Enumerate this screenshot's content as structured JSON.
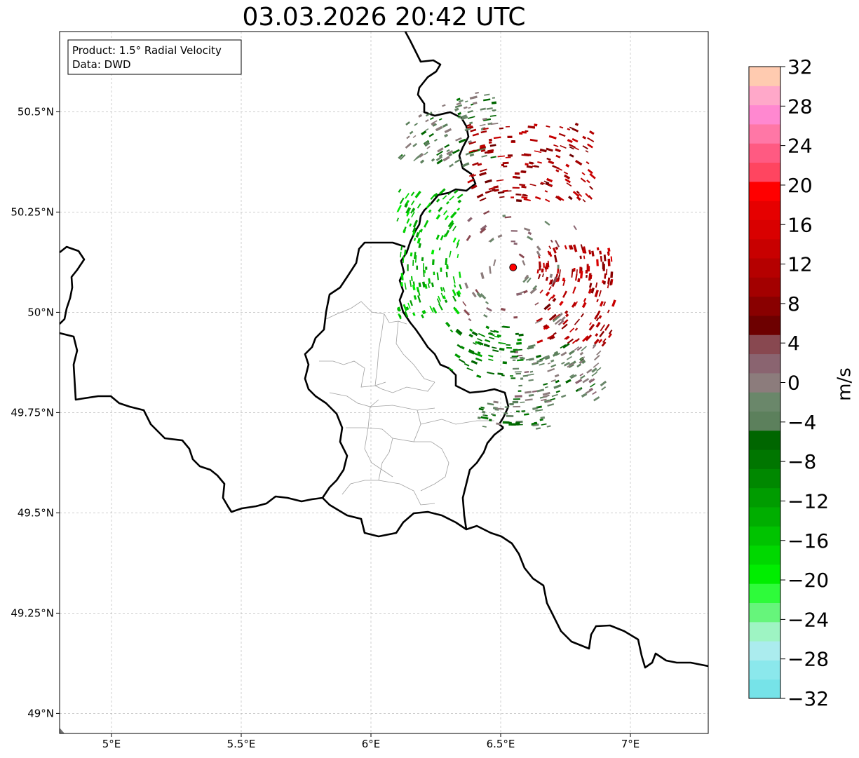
{
  "title": "03.03.2026 20:42 UTC",
  "info_box": {
    "product": "Product: 1.5° Radial Velocity",
    "source": "Data: DWD"
  },
  "map": {
    "lon_range": [
      4.8,
      7.3
    ],
    "lat_range": [
      48.95,
      50.7
    ],
    "x_ticks": [
      {
        "value": 5.0,
        "label": "5°E"
      },
      {
        "value": 5.5,
        "label": "5.5°E"
      },
      {
        "value": 6.0,
        "label": "6°E"
      },
      {
        "value": 6.5,
        "label": "6.5°E"
      },
      {
        "value": 7.0,
        "label": "7°E"
      }
    ],
    "y_ticks": [
      {
        "value": 50.5,
        "label": "50.5°N"
      },
      {
        "value": 50.25,
        "label": "50.25°N"
      },
      {
        "value": 50.0,
        "label": "50°N"
      },
      {
        "value": 49.75,
        "label": "49.75°N"
      },
      {
        "value": 49.5,
        "label": "49.5°N"
      },
      {
        "value": 49.25,
        "label": "49.25°N"
      },
      {
        "value": 49.0,
        "label": "49°N"
      }
    ],
    "radar_site": {
      "lon": 6.548,
      "lat": 50.112
    },
    "colors": {
      "border": "#000000",
      "grid": "#b0b0b0",
      "admin": "#a0a0a0",
      "radar_marker": "#ff0000"
    }
  },
  "colorbar": {
    "label": "m/s",
    "range": [
      -32,
      32
    ],
    "tick_labels": [
      "32",
      "28",
      "24",
      "20",
      "16",
      "12",
      "8",
      "4",
      "0",
      "−4",
      "−8",
      "−12",
      "−16",
      "−20",
      "−24",
      "−28",
      "−32"
    ],
    "colors": [
      "#76e3e8",
      "#8be8ec",
      "#abecee",
      "#9ef4c3",
      "#66f57b",
      "#2efb3a",
      "#00ee00",
      "#00d800",
      "#00c300",
      "#00ae00",
      "#009c00",
      "#008800",
      "#007600",
      "#006600",
      "#5c805c",
      "#6a876a",
      "#8c7c7c",
      "#8a6470",
      "#884850",
      "#6d0000",
      "#890000",
      "#a30000",
      "#b50000",
      "#c80000",
      "#d90000",
      "#e60000",
      "#ff0000",
      "#ff4560",
      "#ff5a82",
      "#ff77a6",
      "#ff88d0",
      "#ffa8c9",
      "#ffcbb0"
    ]
  }
}
